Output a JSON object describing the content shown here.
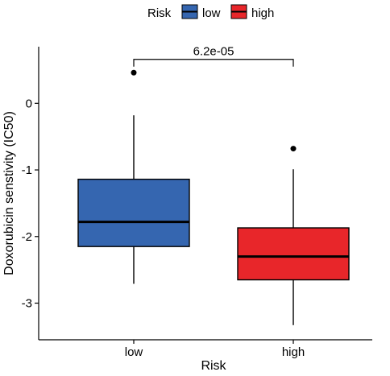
{
  "chart_data": {
    "type": "box",
    "title": "",
    "xlabel": "Risk",
    "ylabel": "Doxorubicin senstivity (IC50)",
    "ylim": [
      -3.55,
      0.85
    ],
    "y_ticks": [
      0,
      -1,
      -2,
      -3
    ],
    "y_tick_labels": [
      "0",
      "-1",
      "-2",
      "-3"
    ],
    "categories": [
      "low",
      "high"
    ],
    "legend": {
      "title": "Risk",
      "placement": "top",
      "entries": [
        {
          "label": "low",
          "color": "#3566B0"
        },
        {
          "label": "high",
          "color": "#E8262A"
        }
      ]
    },
    "series": [
      {
        "name": "low",
        "color": "#3566B0",
        "min": -2.71,
        "q1": -2.15,
        "median": -1.78,
        "q3": -1.14,
        "max": -0.18,
        "outliers": [
          0.46
        ]
      },
      {
        "name": "high",
        "color": "#E8262A",
        "min": -3.33,
        "q1": -2.65,
        "median": -2.3,
        "q3": -1.87,
        "max": -0.99,
        "outliers": [
          -0.68
        ]
      }
    ],
    "annotation": {
      "text": "6.2e-05",
      "y": 0.66
    }
  }
}
